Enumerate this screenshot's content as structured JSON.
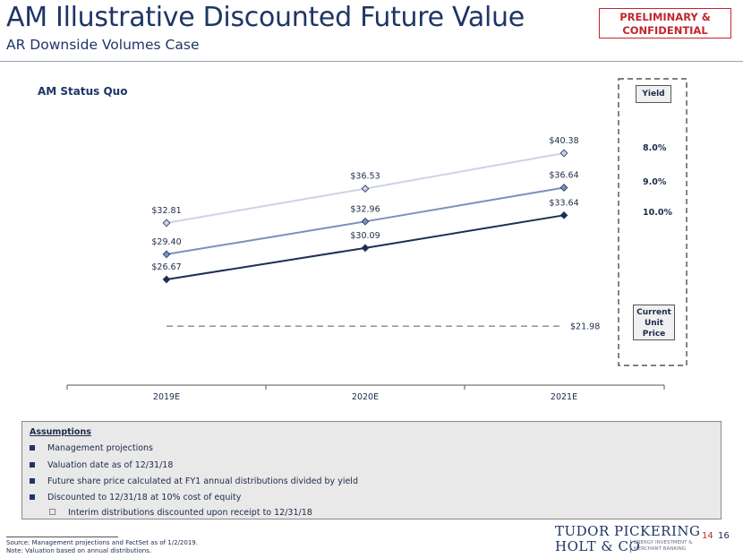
{
  "header": {
    "title": "AM Illustrative Discounted Future Value",
    "subtitle": "AR Downside Volumes Case",
    "badge_line1": "PRELIMINARY &",
    "badge_line2": "CONFIDENTIAL"
  },
  "chart_data": {
    "type": "line",
    "title": "AM Status Quo",
    "categories": [
      "2019E",
      "2020E",
      "2021E"
    ],
    "series": [
      {
        "name": "8.0%",
        "values": [
          32.81,
          36.53,
          40.38
        ],
        "labels": [
          "$32.81",
          "$36.53",
          "$40.38"
        ],
        "color": "#cdd3e6"
      },
      {
        "name": "9.0%",
        "values": [
          29.4,
          32.96,
          36.64
        ],
        "labels": [
          "$29.40",
          "$32.96",
          "$36.64"
        ],
        "color": "#7b90bf"
      },
      {
        "name": "10.0%",
        "values": [
          26.67,
          30.09,
          33.64
        ],
        "labels": [
          "$26.67",
          "$30.09",
          "$33.64"
        ],
        "color": "#1e2f57"
      }
    ],
    "reference_line": {
      "name": "Current Unit Price",
      "value": 21.98,
      "label": "$21.98",
      "color": "#999999"
    },
    "ylim": [
      18,
      44
    ],
    "legend_title": "Yield",
    "legend_placement": "right"
  },
  "legend": {
    "yield_header": "Yield",
    "current_line1": "Current",
    "current_line2": "Unit",
    "current_line3": "Price"
  },
  "assumptions": {
    "header": "Assumptions",
    "items": [
      "Management projections",
      "Valuation date as of 12/31/18",
      "Future share price calculated at FY1 annual distributions divided by yield",
      "Discounted to 12/31/18 at 10% cost of equity"
    ],
    "subitem": "Interim distributions discounted upon receipt to 12/31/18"
  },
  "footer": {
    "source": "Source: Management projections and FactSet as of 1/2/2019.",
    "note": "Note: Valuation based on annual distributions.",
    "page_a": "14",
    "page_b": "16",
    "logo_line1": "TUDOR PICKERING",
    "logo_line2": "HOLT & CO",
    "logo_tag1": "ENERGY INVESTMENT &",
    "logo_tag2": "MERCHANT BANKING"
  },
  "colors": {
    "navy": "#1e3566",
    "red": "#c0272d"
  }
}
